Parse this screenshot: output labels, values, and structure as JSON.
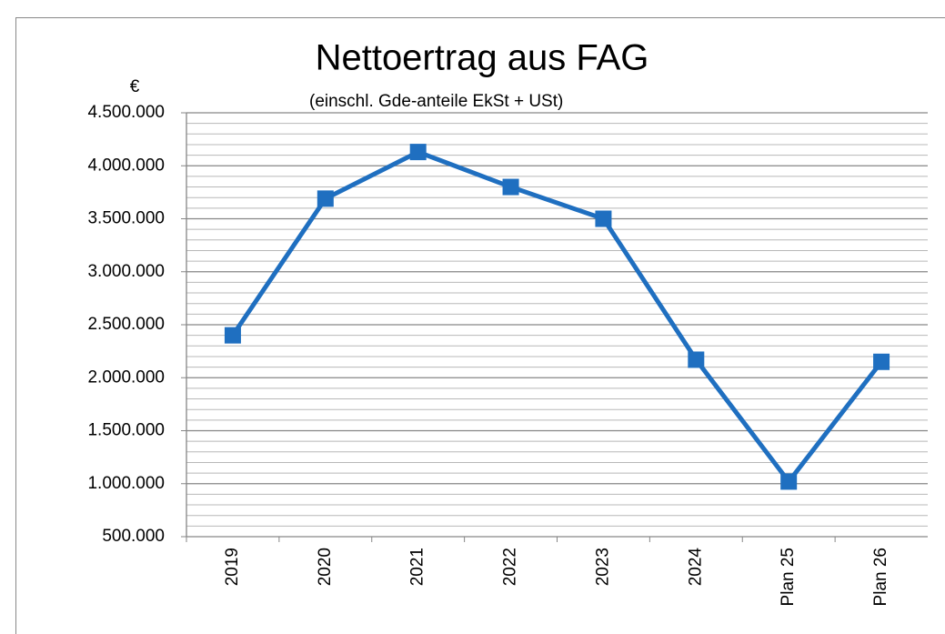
{
  "chart_data": {
    "type": "line",
    "title": "Nettoertrag aus FAG",
    "subtitle": "(einschl. Gde-anteile EkSt + USt)",
    "y_axis_label": "€",
    "categories": [
      "2019",
      "2020",
      "2021",
      "2022",
      "2023",
      "2024",
      "Plan 25",
      "Plan 26"
    ],
    "series": [
      {
        "name": "Nettoertrag",
        "color": "#1f6fc0",
        "values": [
          2400000,
          3690000,
          4130000,
          3800000,
          3500000,
          2170000,
          1020000,
          2150000
        ]
      }
    ],
    "ylim": [
      500000,
      4500000
    ],
    "yticks": [
      {
        "value": 500000,
        "label": "500.000"
      },
      {
        "value": 1000000,
        "label": "1.000.000"
      },
      {
        "value": 1500000,
        "label": "1.500.000"
      },
      {
        "value": 2000000,
        "label": "2.000.000"
      },
      {
        "value": 2500000,
        "label": "2.500.000"
      },
      {
        "value": 3000000,
        "label": "3.000.000"
      },
      {
        "value": 3500000,
        "label": "3.500.000"
      },
      {
        "value": 4000000,
        "label": "4.000.000"
      },
      {
        "value": 4500000,
        "label": "4.500.000"
      }
    ],
    "grid": true,
    "minor_grid_divisions": 5,
    "legend": false
  }
}
